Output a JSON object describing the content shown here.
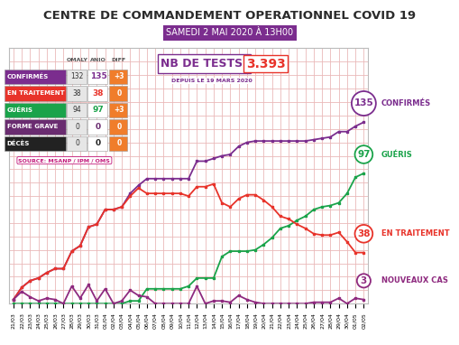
{
  "chart_data": {
    "type": "line",
    "title": "CENTRE DE COMMANDEMENT OPERATIONNEL COVID 19",
    "subtitle": "SAMEDI 2 MAI 2020 À 13H00",
    "categories": [
      "21/03",
      "22/03",
      "23/03",
      "24/03",
      "25/03",
      "26/03",
      "27/03",
      "28/03",
      "29/03",
      "30/03",
      "31/03",
      "01/04",
      "02/04",
      "03/04",
      "04/04",
      "05/04",
      "06/04",
      "07/04",
      "08/04",
      "09/04",
      "10/04",
      "11/04",
      "12/04",
      "13/04",
      "14/04",
      "15/04",
      "16/04",
      "17/04",
      "18/04",
      "19/04",
      "20/04",
      "21/04",
      "22/04",
      "23/04",
      "24/04",
      "25/04",
      "26/04",
      "27/04",
      "28/04",
      "29/04",
      "30/04",
      "01/05",
      "02/05"
    ],
    "series": [
      {
        "name": "CONFIRMÉS",
        "color": "#7b2d8e",
        "marker": "s",
        "values": [
          3,
          12,
          17,
          19,
          23,
          26,
          26,
          39,
          43,
          57,
          59,
          70,
          70,
          72,
          82,
          88,
          93,
          93,
          93,
          93,
          93,
          93,
          106,
          106,
          108,
          110,
          111,
          117,
          120,
          121,
          121,
          121,
          121,
          121,
          121,
          121,
          122,
          123,
          124,
          128,
          128,
          132,
          135
        ]
      },
      {
        "name": "GUÉRIS",
        "color": "#1aa34a",
        "marker": "s",
        "values": [
          0,
          0,
          0,
          0,
          0,
          0,
          0,
          0,
          0,
          0,
          0,
          0,
          0,
          0,
          2,
          2,
          11,
          11,
          11,
          11,
          11,
          13,
          19,
          19,
          19,
          35,
          39,
          39,
          39,
          40,
          44,
          49,
          56,
          58,
          62,
          65,
          70,
          72,
          73,
          75,
          82,
          94,
          97
        ]
      },
      {
        "name": "EN TRAITEMENT",
        "color": "#e8332a",
        "marker": "s",
        "values": [
          3,
          12,
          17,
          19,
          23,
          26,
          26,
          39,
          43,
          57,
          59,
          70,
          70,
          72,
          80,
          86,
          82,
          82,
          82,
          82,
          82,
          80,
          87,
          87,
          89,
          75,
          72,
          78,
          81,
          81,
          77,
          72,
          65,
          63,
          59,
          56,
          52,
          51,
          51,
          53,
          46,
          38,
          38
        ]
      },
      {
        "name": "NOUVEAUX CAS",
        "color": "#8e2a7f",
        "marker": "s",
        "values": [
          3,
          9,
          5,
          2,
          4,
          3,
          0,
          13,
          4,
          14,
          2,
          11,
          0,
          2,
          10,
          6,
          5,
          0,
          0,
          0,
          0,
          0,
          13,
          0,
          2,
          2,
          1,
          6,
          3,
          1,
          0,
          0,
          0,
          0,
          0,
          0,
          1,
          1,
          1,
          4,
          0,
          4,
          3
        ]
      }
    ],
    "ylim": [
      0,
      190
    ],
    "yticks": [
      0,
      10,
      20,
      30,
      40,
      50,
      60,
      70,
      80,
      90,
      100,
      110,
      120,
      130,
      140,
      150,
      160,
      170,
      180,
      190
    ],
    "grid": true,
    "tick_labels": "x"
  },
  "table": {
    "header": [
      "OMALY",
      "ANIO",
      "DIFF"
    ],
    "rows": [
      [
        "CONFIRMÉS",
        132,
        135,
        "+3"
      ],
      [
        "EN TRAITEMENT",
        38,
        38,
        0
      ],
      [
        "GUÉRIS",
        94,
        97,
        "+3"
      ],
      [
        "FORME GRAVE",
        0,
        0,
        0
      ],
      [
        "DÉCÈS",
        0,
        0,
        0
      ]
    ]
  },
  "source": "SOURCE: MSANP / IPM / OMS",
  "tests": {
    "label": "NB DE TESTS:",
    "value": "3.393",
    "note": "DEPUIS LE 19 MARS 2020"
  }
}
